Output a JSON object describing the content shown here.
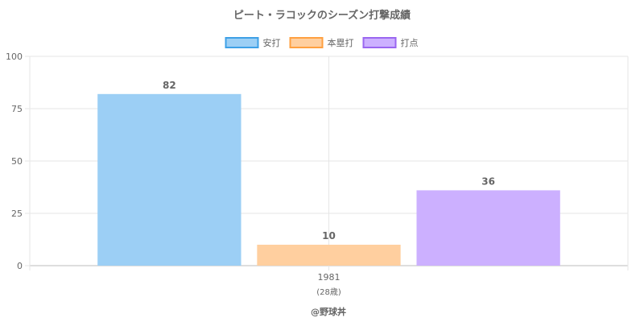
{
  "chart_data": {
    "type": "bar",
    "title": "ピート・ラコックのシーズン打撃成績",
    "categories": [
      "1981"
    ],
    "category_sublabels": [
      "(28歳)"
    ],
    "series": [
      {
        "name": "安打",
        "values": [
          82
        ],
        "color": "#9ccff5",
        "border": "#3ea0e6"
      },
      {
        "name": "本塁打",
        "values": [
          10
        ],
        "color": "#ffcf9f",
        "border": "#ffa040"
      },
      {
        "name": "打点",
        "values": [
          36
        ],
        "color": "#ccb0ff",
        "border": "#9a66f0"
      }
    ],
    "data_labels": [
      "82",
      "10",
      "36"
    ],
    "ylim": [
      0,
      100
    ],
    "yticks": [
      0,
      25,
      50,
      75,
      100
    ],
    "grid": true,
    "legend_position": "top-center"
  },
  "credit": "@野球丼"
}
